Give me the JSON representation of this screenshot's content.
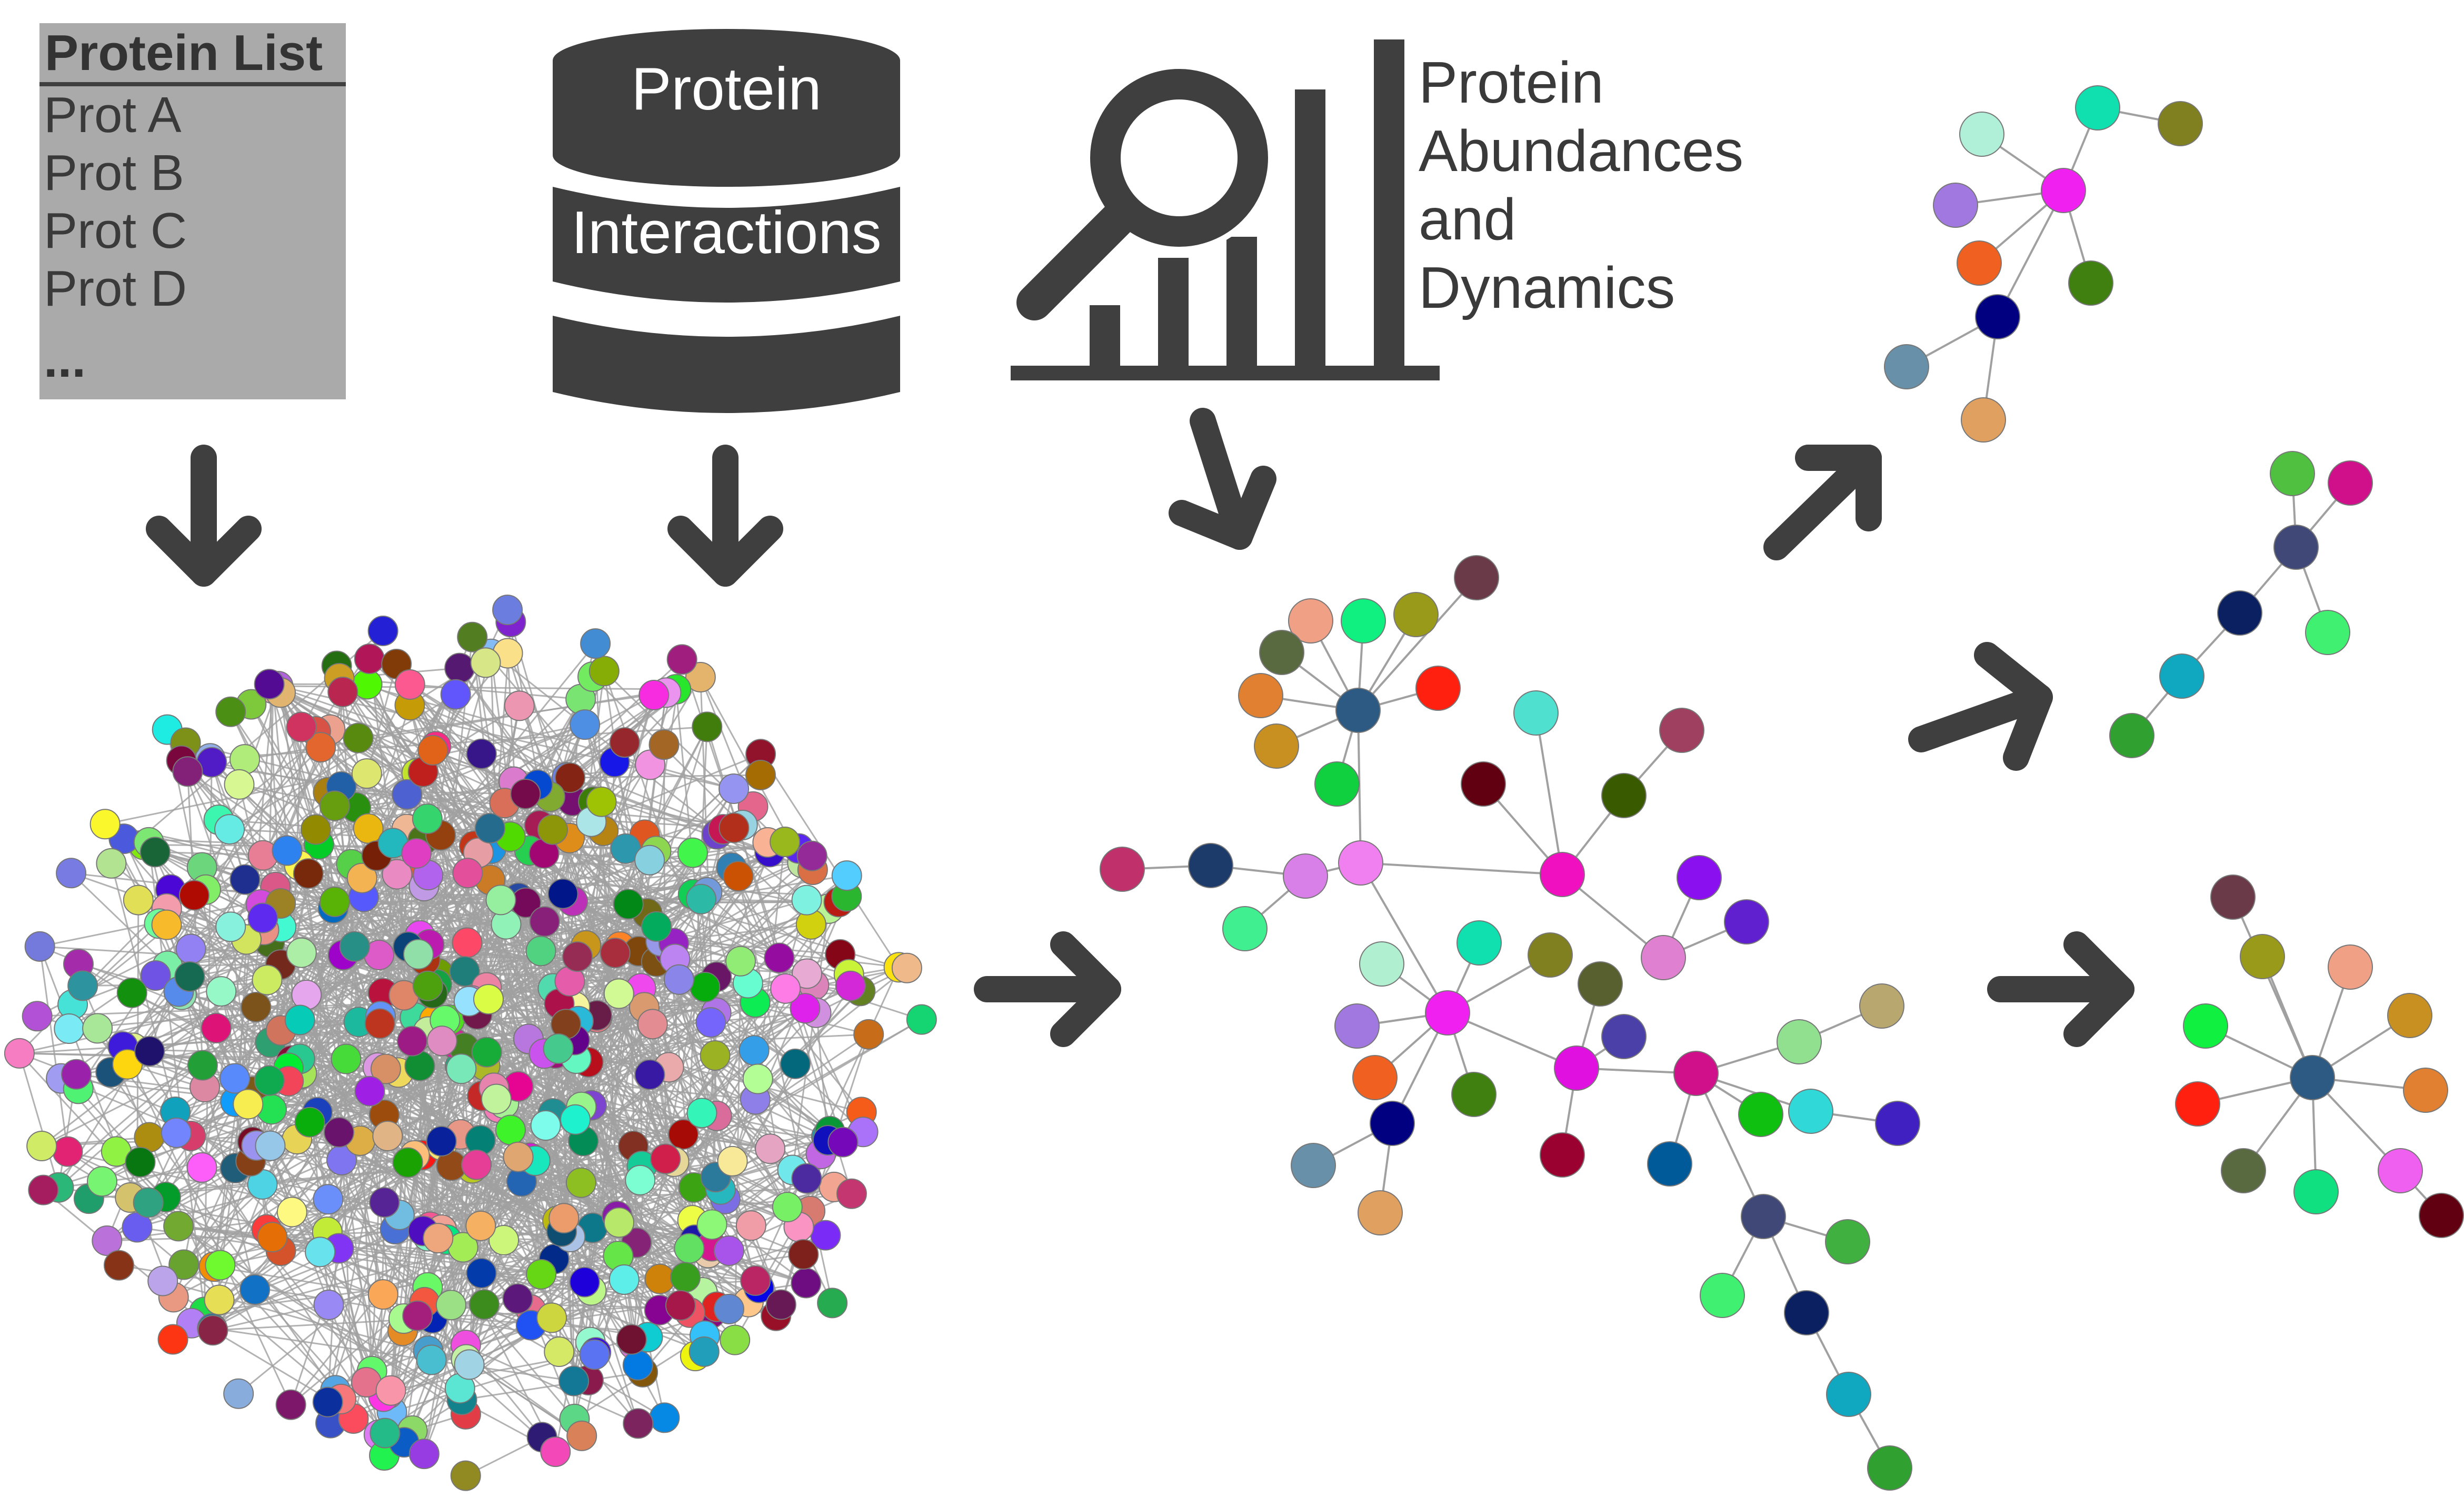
{
  "protein_list": {
    "header": "Protein List",
    "items": [
      "Prot A",
      "Prot B",
      "Prot C",
      "Prot D"
    ],
    "more": "..."
  },
  "database": {
    "line1": "Protein",
    "line2": "Interactions"
  },
  "abundances": {
    "lines": [
      "Protein",
      "Abundances",
      "and",
      "Dynamics"
    ]
  },
  "colors": {
    "dark_gray": "#3f3f3f",
    "list_bg": "#aaaaaa",
    "edge": "#a0a0a0"
  }
}
